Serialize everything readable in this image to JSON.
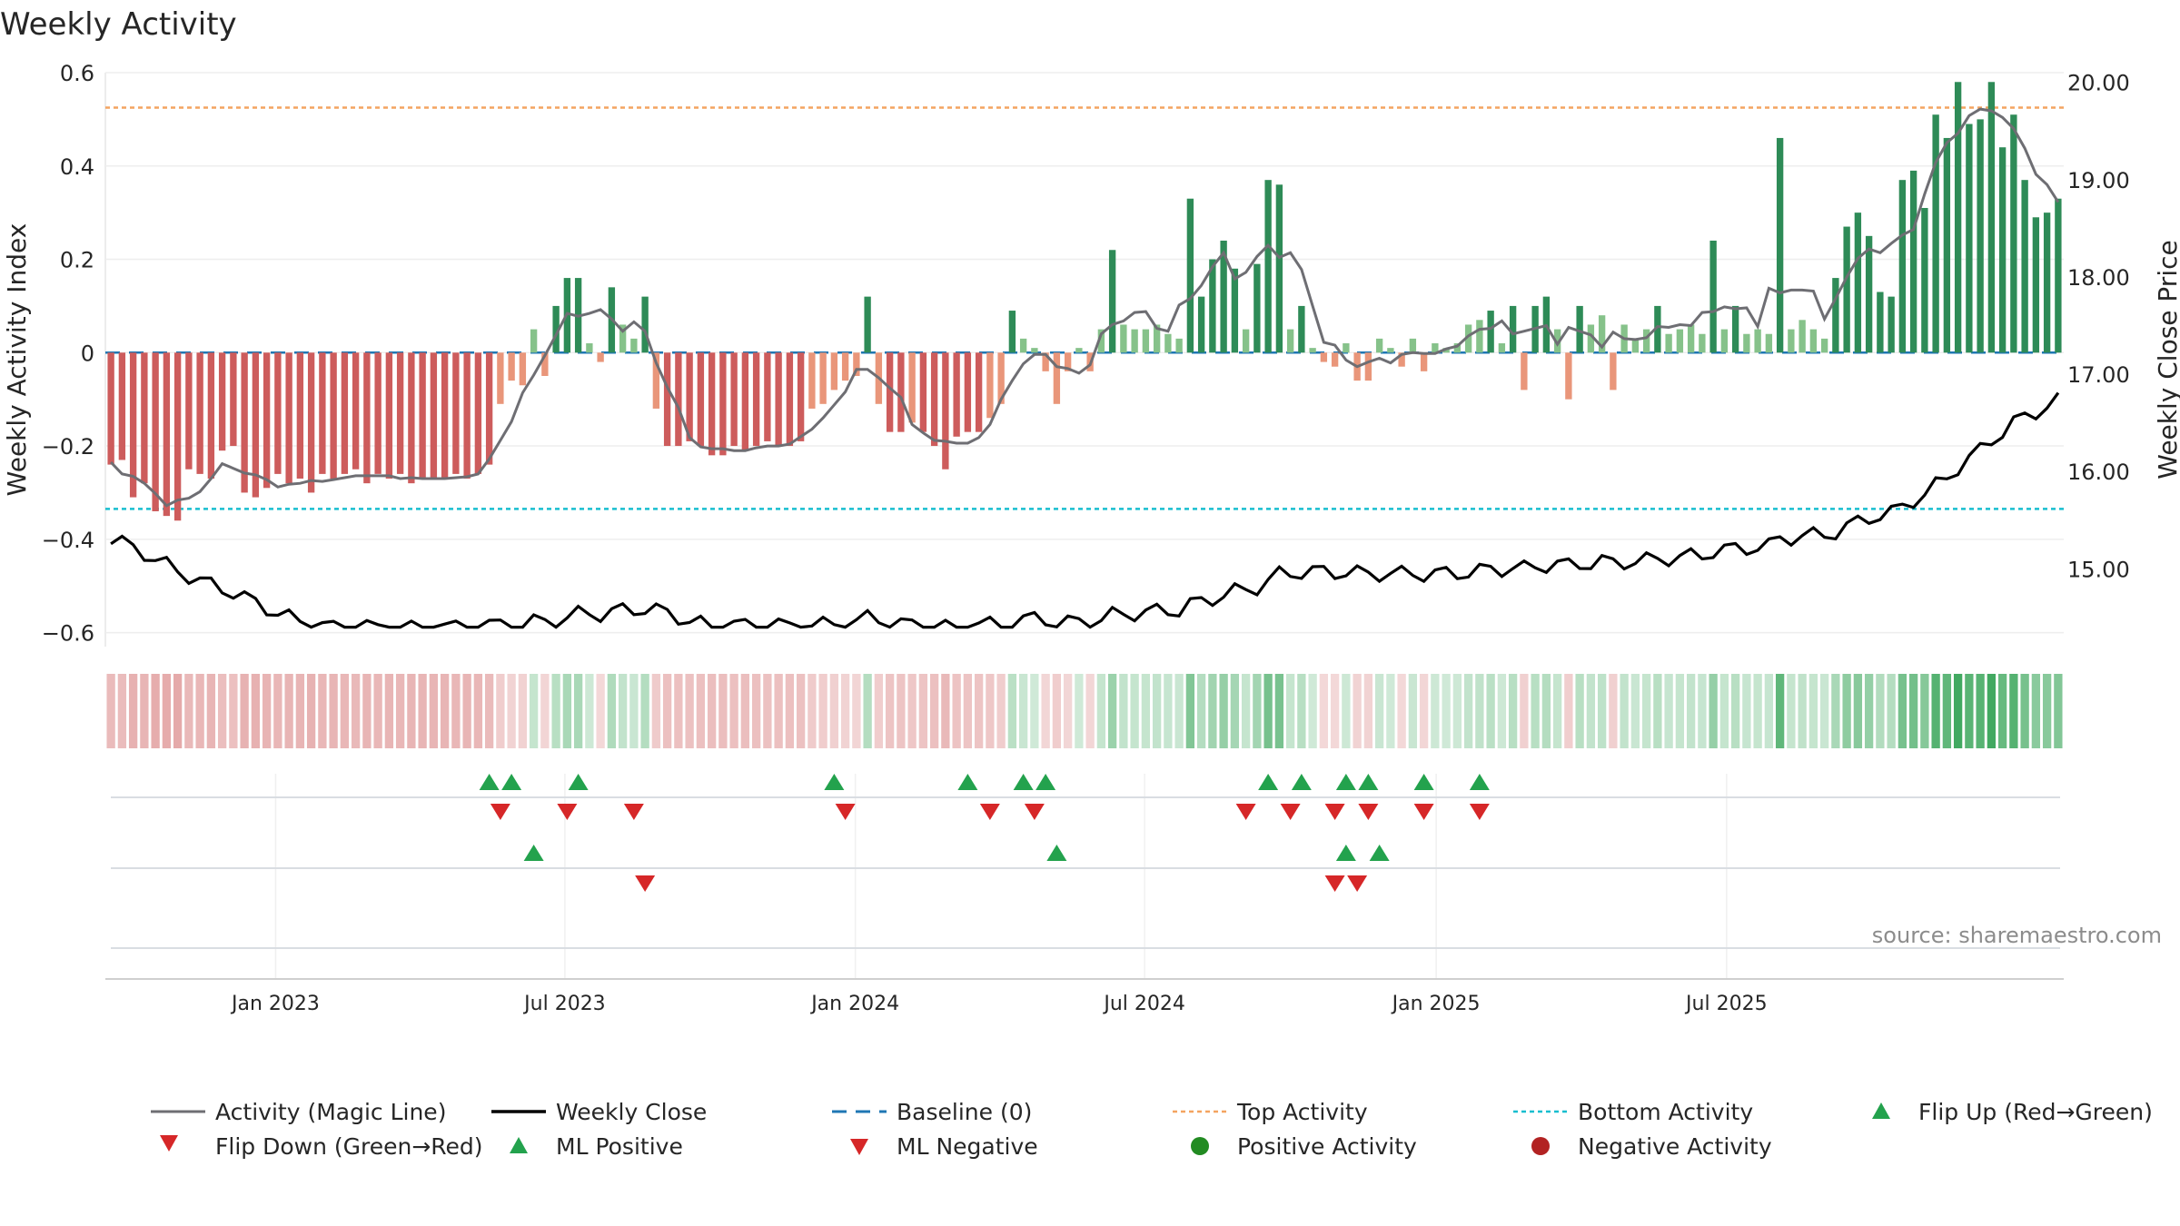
{
  "chart_data": {
    "type": "bar",
    "title": "Weekly Activity",
    "ylabel": "Weekly Activity Index",
    "y2label": "Weekly Close Price",
    "source": "source: sharemaestro.com",
    "ylim": [
      -0.63,
      0.6
    ],
    "y2lim": [
      14.2,
      20.1
    ],
    "y_ticks": [
      0.6,
      0.4,
      0.2,
      0,
      -0.2,
      -0.4,
      -0.6
    ],
    "y_tick_labels": [
      "0.6",
      "0.4",
      "0.2",
      "0",
      "−0.2",
      "−0.4",
      "−0.6"
    ],
    "y2_ticks": [
      20,
      19,
      18,
      17,
      16,
      15
    ],
    "y2_tick_labels": [
      "20.00",
      "19.00",
      "18.00",
      "17.00",
      "16.00",
      "15.00"
    ],
    "x_tick_labels": [
      "Jan 2023",
      "Jul 2023",
      "Jan 2024",
      "Jul 2024",
      "Jan 2025",
      "Jul 2025"
    ],
    "x_tick_weeks": [
      15.3,
      41.3,
      67.4,
      93.4,
      119.6,
      145.7
    ],
    "top_activity": 0.525,
    "bottom_activity": -0.335,
    "activity": [
      -0.24,
      -0.23,
      -0.31,
      -0.28,
      -0.34,
      -0.35,
      -0.36,
      -0.25,
      -0.26,
      -0.27,
      -0.21,
      -0.2,
      -0.3,
      -0.31,
      -0.29,
      -0.26,
      -0.28,
      -0.27,
      -0.3,
      -0.26,
      -0.27,
      -0.26,
      -0.25,
      -0.28,
      -0.26,
      -0.27,
      -0.26,
      -0.28,
      -0.27,
      -0.27,
      -0.27,
      -0.26,
      -0.27,
      -0.26,
      -0.24,
      -0.11,
      -0.06,
      -0.07,
      0.05,
      -0.05,
      0.1,
      0.16,
      0.16,
      0.02,
      -0.02,
      0.14,
      0.06,
      0.03,
      0.12,
      -0.12,
      -0.2,
      -0.2,
      -0.19,
      -0.2,
      -0.22,
      -0.22,
      -0.2,
      -0.21,
      -0.2,
      -0.19,
      -0.2,
      -0.2,
      -0.19,
      -0.12,
      -0.11,
      -0.08,
      -0.06,
      -0.05,
      0.12,
      -0.11,
      -0.17,
      -0.17,
      -0.15,
      -0.17,
      -0.2,
      -0.25,
      -0.18,
      -0.17,
      -0.17,
      -0.14,
      -0.11,
      0.09,
      0.03,
      0.01,
      -0.04,
      -0.11,
      -0.04,
      0.01,
      -0.04,
      0.05,
      0.22,
      0.06,
      0.05,
      0.05,
      0.06,
      0.04,
      0.03,
      0.33,
      0.12,
      0.2,
      0.24,
      0.18,
      0.05,
      0.19,
      0.37,
      0.36,
      0.05,
      0.1,
      0.01,
      -0.02,
      -0.03,
      0.02,
      -0.06,
      -0.06,
      0.03,
      0.01,
      -0.03,
      0.03,
      -0.04,
      0.02,
      0.01,
      0.02,
      0.06,
      0.07,
      0.09,
      0.02,
      0.1,
      -0.08,
      0.1,
      0.12,
      0.05,
      -0.1,
      0.1,
      0.06,
      0.08,
      -0.08,
      0.06,
      0.03,
      0.05,
      0.1,
      0.04,
      0.05,
      0.06,
      0.04,
      0.24,
      0.05,
      0.1,
      0.04,
      0.05,
      0.04,
      0.46,
      0.05,
      0.07,
      0.05,
      0.03,
      0.16,
      0.27,
      0.3,
      0.25,
      0.13,
      0.12,
      0.37,
      0.39,
      0.31,
      0.51,
      0.46,
      0.58,
      0.49,
      0.5,
      0.58,
      0.44,
      0.51,
      0.37,
      0.29,
      0.3,
      0.33
    ]
  },
  "legend": {
    "activity_line": "Activity (Magic Line)",
    "weekly_close": "Weekly Close",
    "baseline": "Baseline (0)",
    "top_activity": "Top Activity",
    "bottom_activity": "Bottom Activity",
    "flip_up": "Flip Up (Red→Green)",
    "flip_down": "Flip Down (Green→Red)",
    "ml_positive": "ML Positive",
    "ml_negative": "ML Negative",
    "positive_activity": "Positive Activity",
    "negative_activity": "Negative Activity"
  },
  "colors": {
    "pos_strong": "#2e8b57",
    "pos_light": "#86c28a",
    "neg_strong": "#cd5c5c",
    "neg_light": "#e9967a",
    "magic_line": "#6e6e73",
    "close_line": "#000000",
    "baseline": "#1f77b4",
    "top_line": "#f4a460",
    "bottom_line": "#17becf",
    "flip_up": "#23a24d",
    "flip_down": "#d62728",
    "positive_dot": "#228b22",
    "negative_dot": "#b22222"
  },
  "markers": {
    "flip_up": [
      34,
      36,
      42,
      65,
      77,
      82,
      84,
      104,
      107,
      111,
      113,
      118,
      123
    ],
    "flip_down": [
      35,
      41,
      47,
      66,
      79,
      83,
      102,
      106,
      110,
      113,
      118,
      123
    ],
    "ml_positive": [
      38,
      85,
      111,
      114
    ],
    "ml_negative": [
      48,
      110,
      112
    ]
  }
}
